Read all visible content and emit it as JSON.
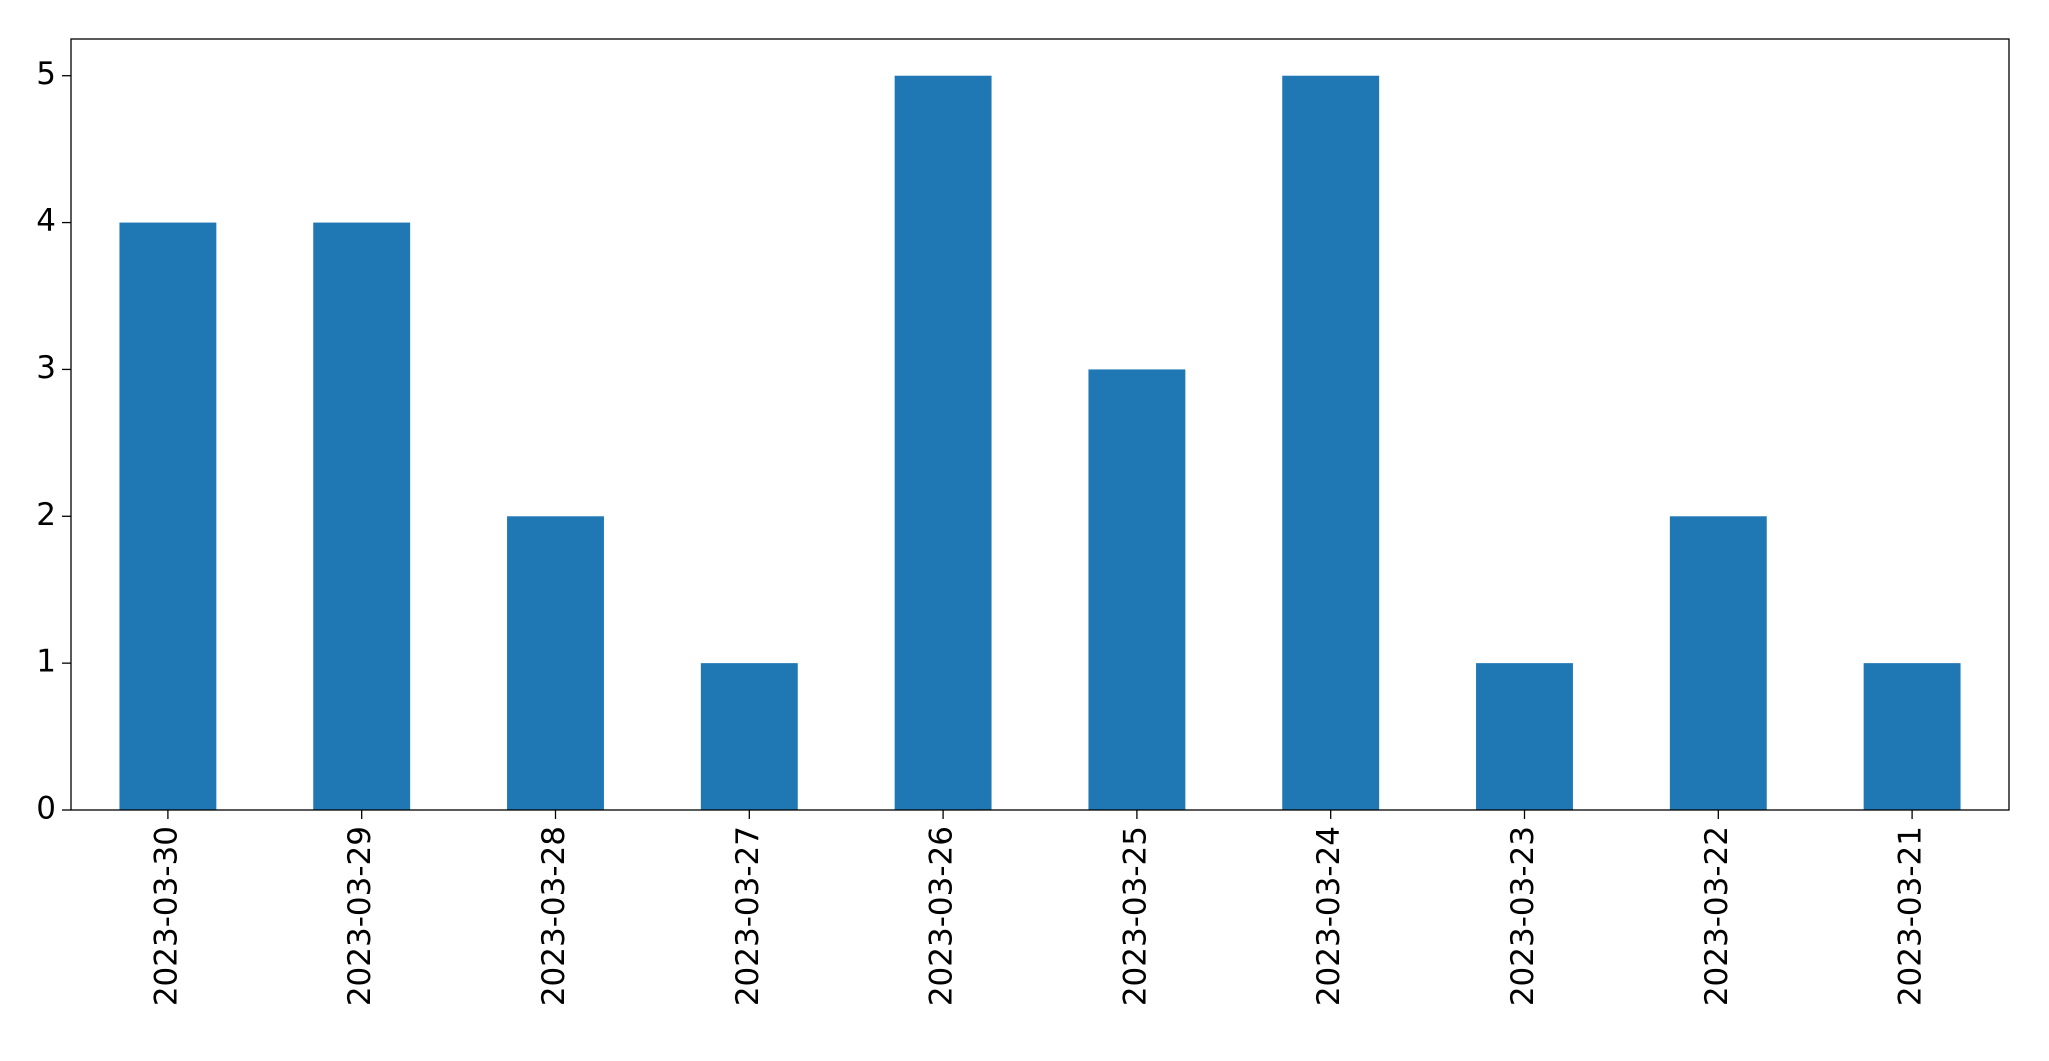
{
  "chart_data": {
    "type": "bar",
    "categories": [
      "2023-03-30",
      "2023-03-29",
      "2023-03-28",
      "2023-03-27",
      "2023-03-26",
      "2023-03-25",
      "2023-03-24",
      "2023-03-23",
      "2023-03-22",
      "2023-03-21"
    ],
    "values": [
      4,
      4,
      2,
      1,
      5,
      3,
      5,
      1,
      2,
      1
    ],
    "color": "#1f77b4",
    "ylim": [
      0,
      5.25
    ],
    "yticks": [
      0,
      1,
      2,
      3,
      4,
      5
    ],
    "grid": false
  }
}
